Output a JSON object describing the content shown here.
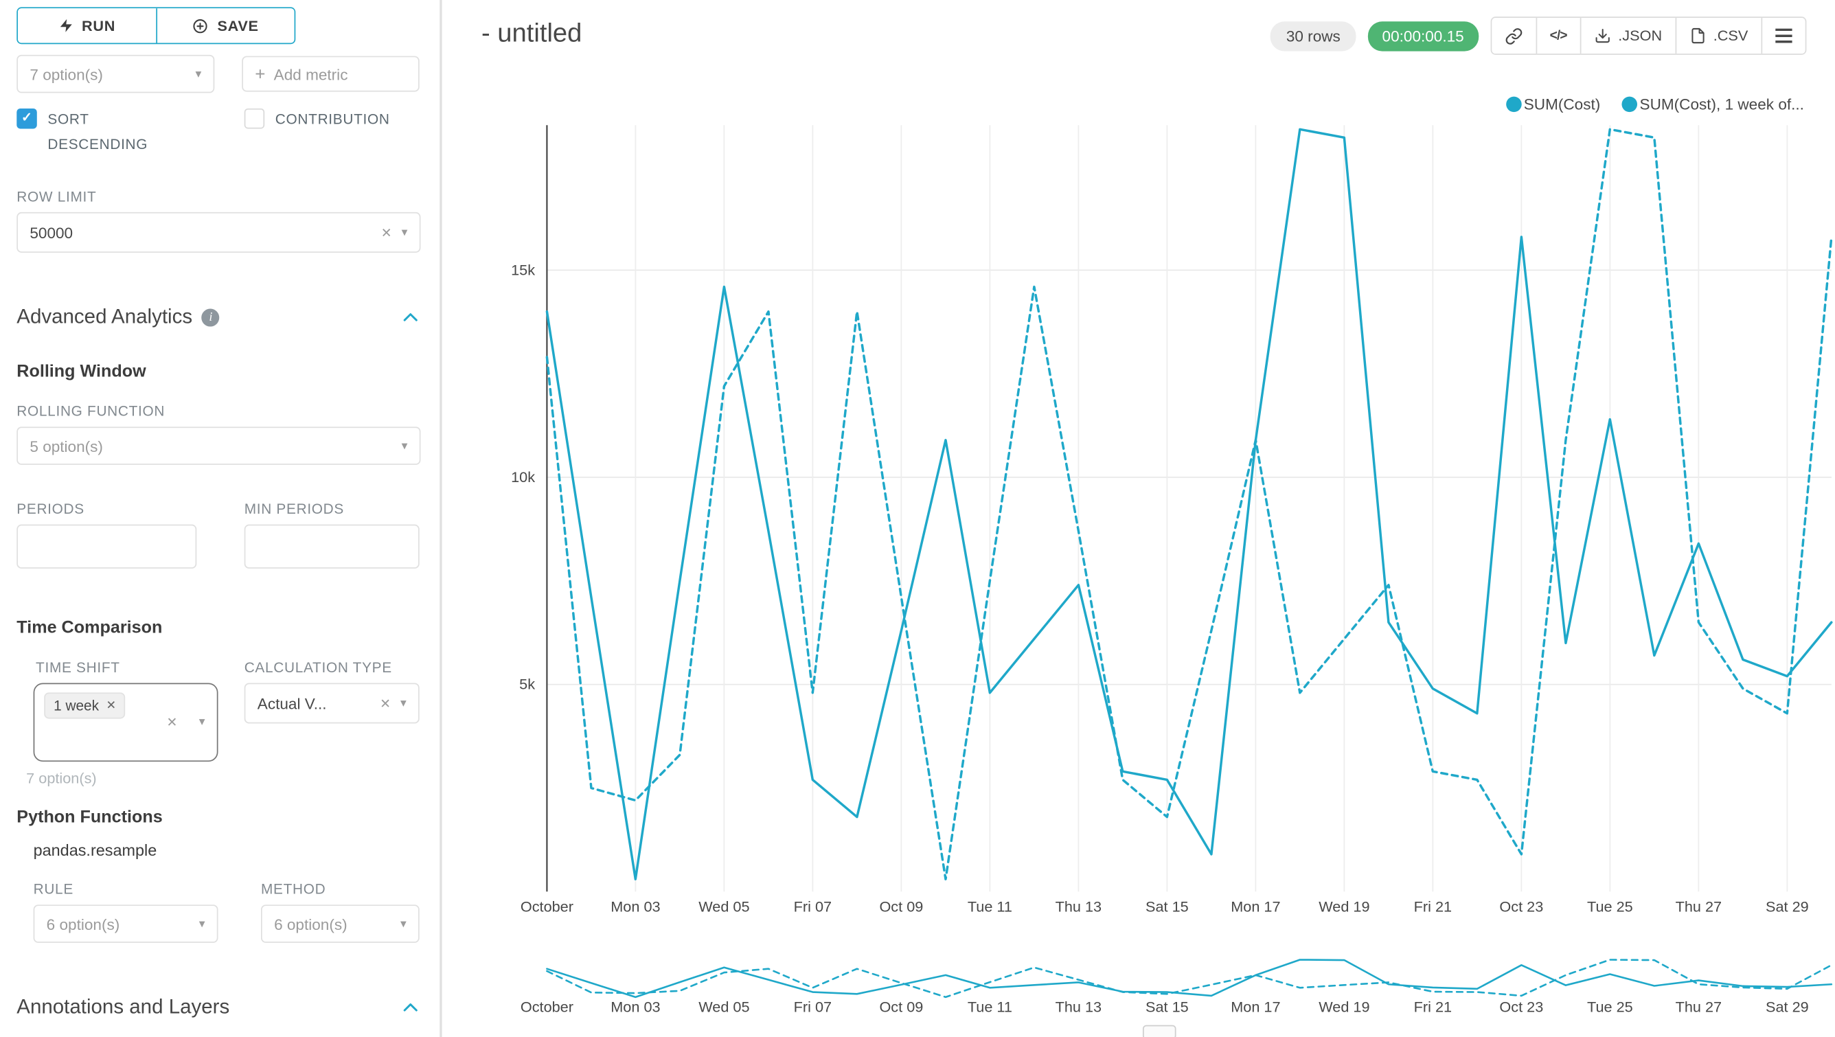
{
  "colors": {
    "accent": "#20A7C9",
    "series_line": "#1FA8C9",
    "timer_green": "#4FB573",
    "checkbox_blue": "#2D9CDB"
  },
  "icons": {
    "caret_down": "▾",
    "clear": "✕",
    "check": "✓",
    "plus": "+",
    "info": "i",
    "code": "</>"
  },
  "sidebar": {
    "run_label": "RUN",
    "save_label": "SAVE",
    "metric_select_placeholder": "7 option(s)",
    "add_metric_label": "Add metric",
    "sort_descending_label": "SORT DESCENDING",
    "contribution_label": "CONTRIBUTION",
    "row_limit_label": "ROW LIMIT",
    "row_limit_value": "50000",
    "advanced_analytics_title": "Advanced Analytics",
    "rolling_window_title": "Rolling Window",
    "rolling_function_label": "ROLLING FUNCTION",
    "rolling_function_placeholder": "5 option(s)",
    "periods_label": "PERIODS",
    "min_periods_label": "MIN PERIODS",
    "periods_value": "",
    "min_periods_value": "",
    "time_comparison_title": "Time Comparison",
    "time_shift_label": "TIME SHIFT",
    "time_shift_tag": "1 week",
    "time_shift_hint": "7 option(s)",
    "calculation_type_label": "CALCULATION TYPE",
    "calculation_type_value": "Actual V...",
    "python_functions_title": "Python Functions",
    "resample_name": "pandas.resample",
    "rule_label": "RULE",
    "rule_placeholder": "6 option(s)",
    "method_label": "METHOD",
    "method_placeholder": "6 option(s)",
    "annotations_title": "Annotations and Layers"
  },
  "header": {
    "title": "- untitled",
    "rows_badge": "30 rows",
    "timer": "00:00:00.15",
    "export_json": ".JSON",
    "export_csv": ".CSV"
  },
  "chart_data": {
    "type": "line",
    "title": "- untitled",
    "color": "#1FA8C9",
    "legend_position": "top-right",
    "grid": true,
    "ylim": [
      0,
      18500
    ],
    "yticks": [
      {
        "value": 5000,
        "label": "5k"
      },
      {
        "value": 10000,
        "label": "10k"
      },
      {
        "value": 15000,
        "label": "15k"
      }
    ],
    "x_tick_labels": [
      "October",
      "Mon 03",
      "Wed 05",
      "Fri 07",
      "Oct 09",
      "Tue 11",
      "Thu 13",
      "Sat 15",
      "Mon 17",
      "Wed 19",
      "Fri 21",
      "Oct 23",
      "Tue 25",
      "Thu 27",
      "Sat 29"
    ],
    "series": [
      {
        "name": "SUM(Cost)",
        "style": "solid",
        "values": [
          14000,
          7100,
          300,
          7500,
          14600,
          8700,
          2700,
          1800,
          6300,
          10900,
          4800,
          6100,
          7400,
          2900,
          2700,
          900,
          10900,
          18400,
          18200,
          6500,
          4900,
          4300,
          15800,
          6000,
          11400,
          5700,
          8400,
          5600,
          5200,
          6500
        ]
      },
      {
        "name": "SUM(Cost), 1 week of...",
        "style": "dashed",
        "values": [
          12900,
          2500,
          2200,
          3300,
          12200,
          14000,
          4800,
          14000,
          7100,
          300,
          7500,
          14600,
          8700,
          2700,
          1800,
          6300,
          10900,
          4800,
          6100,
          7400,
          2900,
          2700,
          900,
          10900,
          18400,
          18200,
          6500,
          4900,
          4300,
          15800
        ]
      }
    ]
  }
}
